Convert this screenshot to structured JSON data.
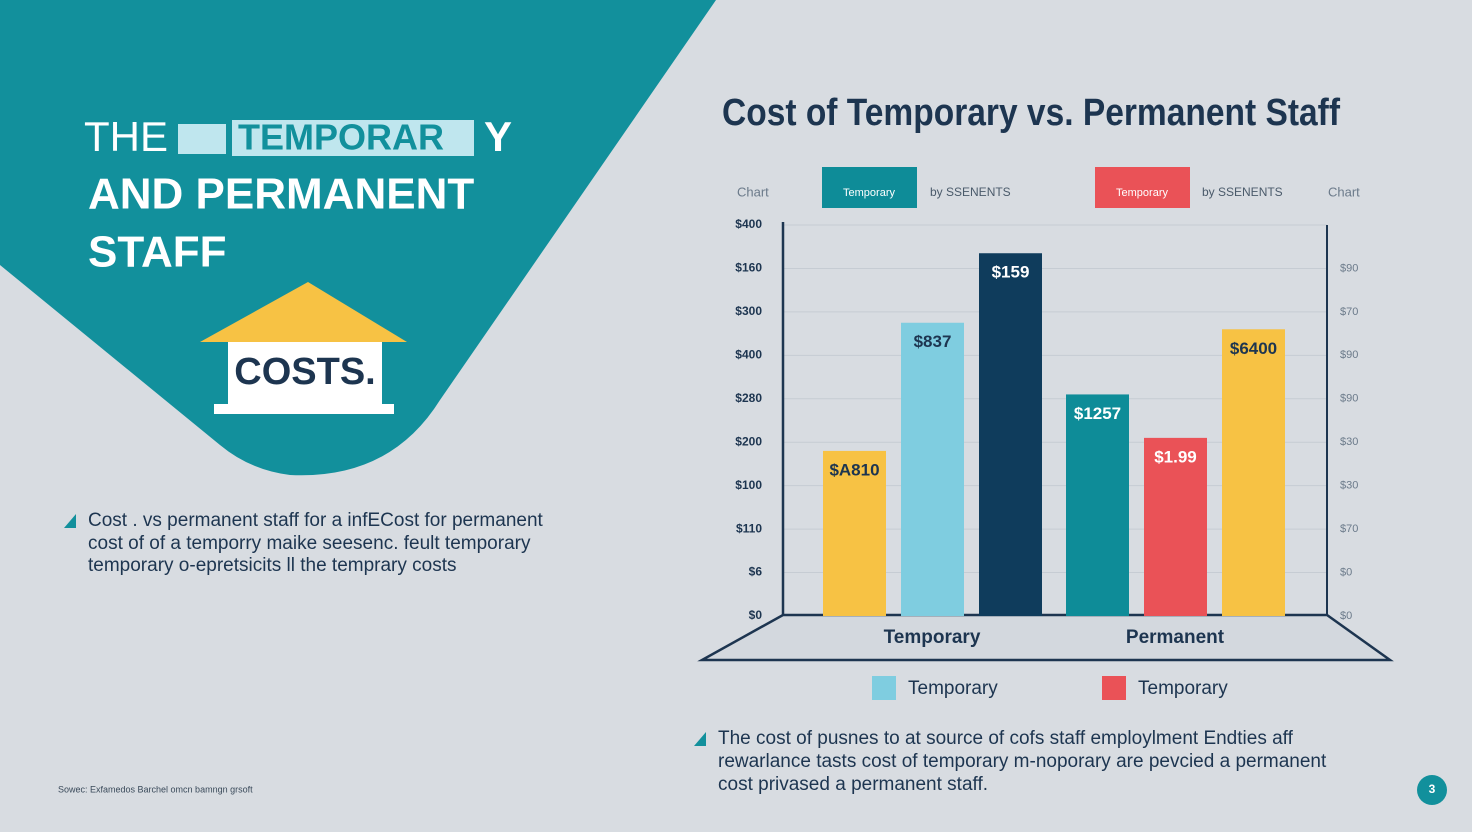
{
  "slide": {
    "heading_lines": [
      "THE",
      "TEMPORAR",
      "Y",
      "AND PERMANENT",
      "STAFF"
    ],
    "badge": "COSTS.",
    "body_left": [
      "Cost . vs permanent staff for a infECost for permanent",
      "cost of of a temporry maike seesenc. feult temporary",
      "temporary o-epretsicits ll the temprary costs"
    ],
    "body_right": [
      "The cost of pusnes to at source of  cofs  staff employlment Endties aff",
      "rewarlance tasts cost of temporary m-noporary are pevcied a permanent",
      "cost privased a permanent staff."
    ],
    "source": "Sowec: Exfamedos Barchel omcn bamngn grsoft",
    "page_number": "3"
  },
  "chart_data": {
    "type": "bar",
    "title": "Cost of Temporary vs. Permanent Staff",
    "header_items": [
      "Chart",
      "Temporary",
      "by SSENENTS",
      "Temporary",
      "by SSENENTS",
      "Chart"
    ],
    "categories": [
      "Temporary",
      "Permanent"
    ],
    "series": [
      {
        "colors": [
          "#f7c244",
          "#0e8c98"
        ],
        "values": [
          3.8,
          5.1
        ],
        "labels": [
          "$A810",
          "$1257"
        ]
      },
      {
        "colors": [
          "#7fcde0",
          "#ea5257"
        ],
        "values": [
          6.75,
          4.1
        ],
        "labels": [
          "$837",
          "$1.99"
        ]
      },
      {
        "colors": [
          "#0f3c5c",
          "#f7c244"
        ],
        "values": [
          8.35,
          6.6
        ],
        "labels": [
          "$159",
          "$6400"
        ]
      }
    ],
    "ylim": [
      0,
      9
    ],
    "yticks": [
      {
        "value": 0,
        "label": "$0"
      },
      {
        "value": 1,
        "label": "$6"
      },
      {
        "value": 2,
        "label": "$110"
      },
      {
        "value": 3,
        "label": "$100"
      },
      {
        "value": 4,
        "label": "$200"
      },
      {
        "value": 5,
        "label": "$280"
      },
      {
        "value": 6,
        "label": "$400"
      },
      {
        "value": 7,
        "label": "$300"
      },
      {
        "value": 8,
        "label": "$160"
      },
      {
        "value": 9,
        "label": "$400"
      }
    ],
    "y2lim": [
      0,
      9
    ],
    "y2ticks": [
      {
        "value": 0,
        "label": "$0"
      },
      {
        "value": 1,
        "label": "$0"
      },
      {
        "value": 2,
        "label": "$70"
      },
      {
        "value": 3,
        "label": "$30"
      },
      {
        "value": 4,
        "label": "$30"
      },
      {
        "value": 5,
        "label": "$90"
      },
      {
        "value": 6,
        "label": "$90"
      },
      {
        "value": 7,
        "label": "$70"
      },
      {
        "value": 8,
        "label": "$90"
      }
    ],
    "grid": true,
    "legend": [
      {
        "label": "Temporary",
        "color": "#7fcde0"
      },
      {
        "label": "Temporary",
        "color": "#ea5257"
      }
    ]
  }
}
